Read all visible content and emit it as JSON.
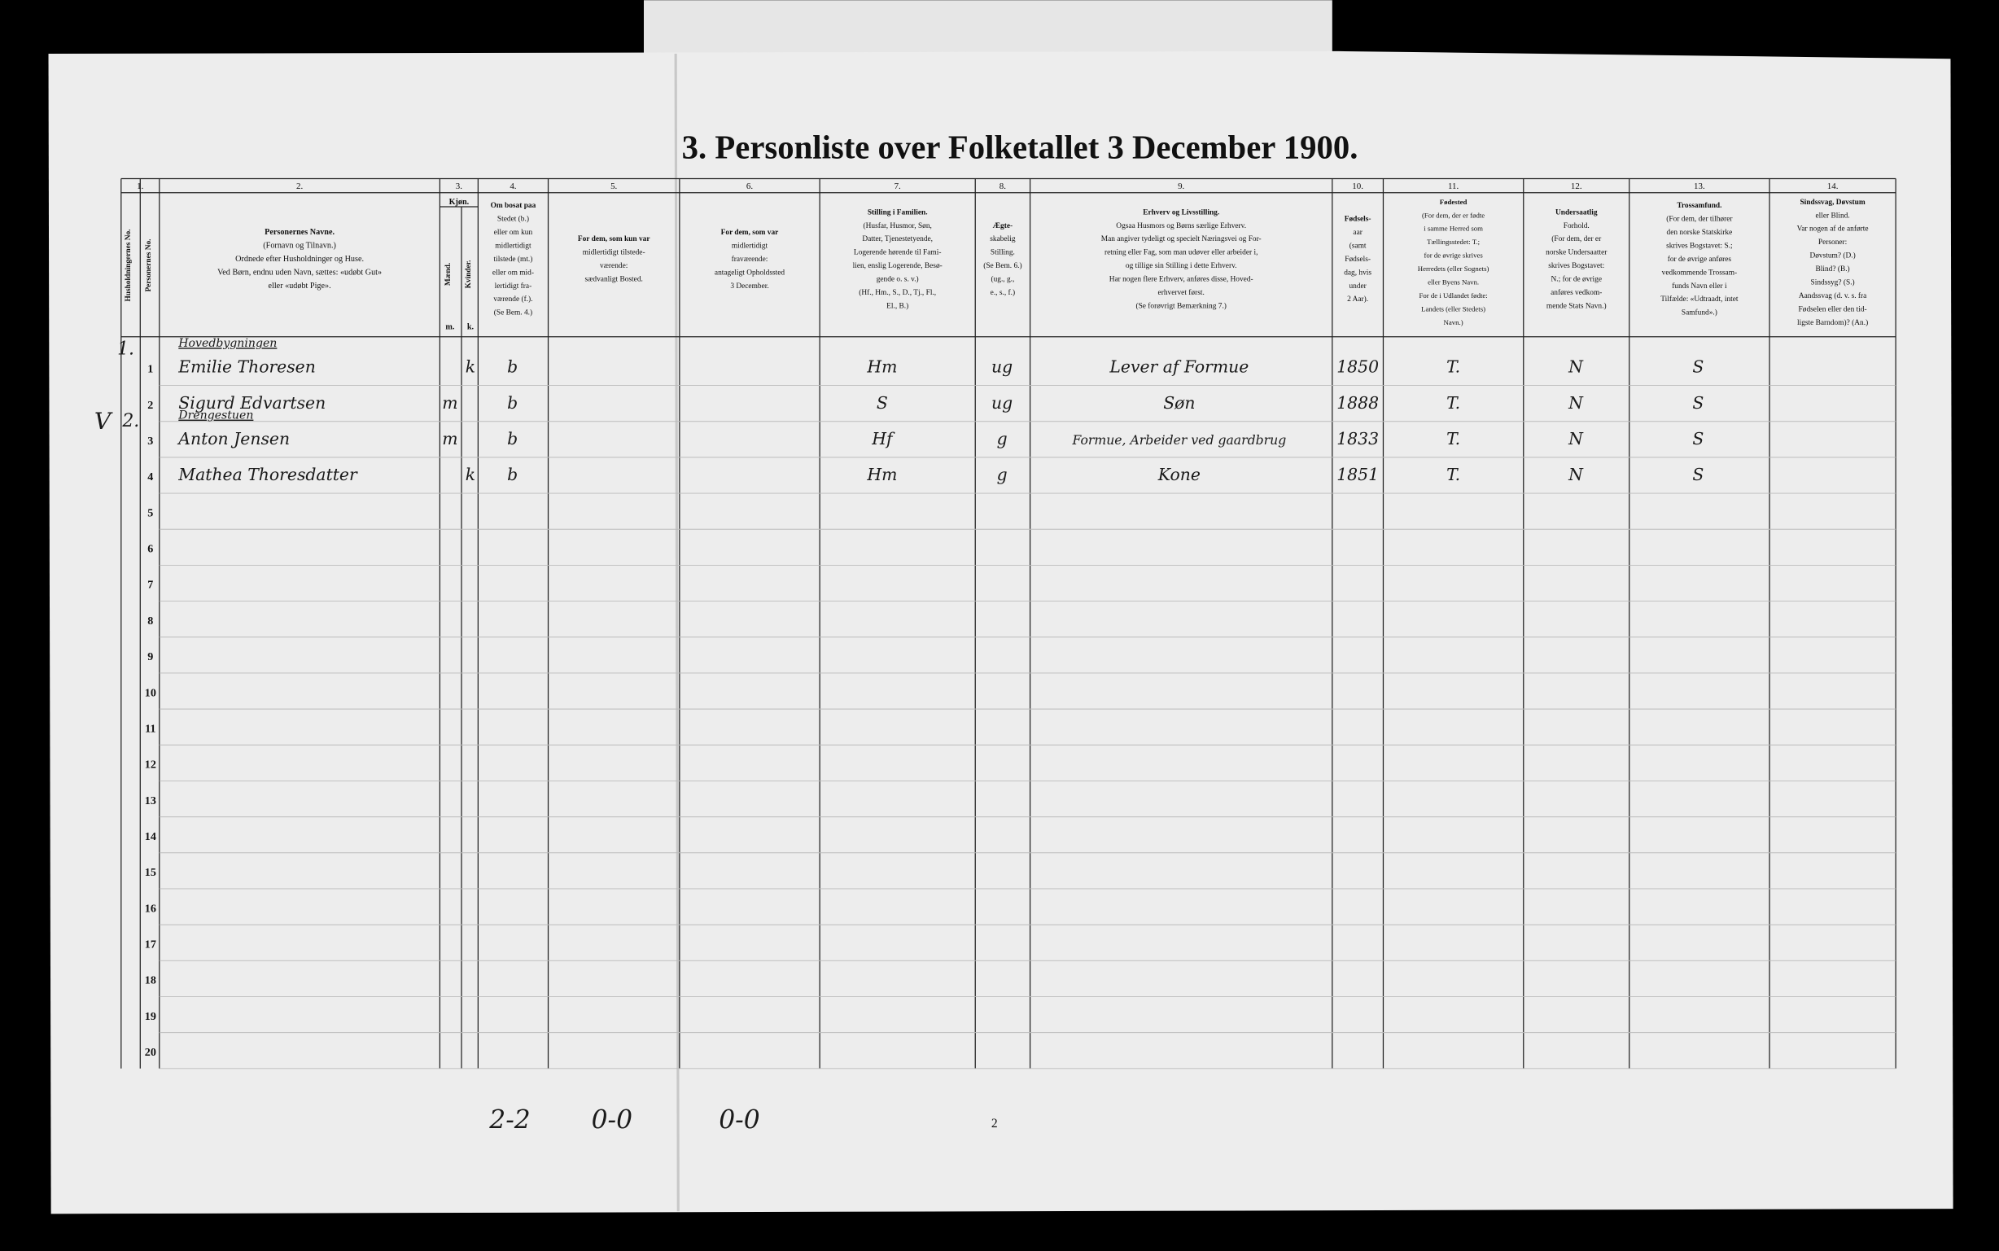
{
  "title": "3. Personliste over Folketallet 3 December 1900.",
  "columns": [
    {
      "number": "1.",
      "lines": [
        "Husholdningernes No.",
        "Personernes No."
      ]
    },
    {
      "number": "2.",
      "lines": [
        "Personernes Navne.",
        "(Fornavn og Tilnavn.)",
        "Ordnede efter Husholdninger og Huse.",
        "Ved Børn, endnu uden Navn, sættes: «udøbt Gut»",
        "eller «udøbt Pige»."
      ]
    },
    {
      "number": "3.",
      "lines": [
        "Kjøn.",
        "Mænd.",
        "Kvinder.",
        "m.",
        "k."
      ]
    },
    {
      "number": "4.",
      "lines": [
        "Om bosat paa",
        "Stedet (b.)",
        "eller om kun",
        "midlertidigt",
        "tilstede (mt.)",
        "eller om mid-",
        "lertidigt fra-",
        "værende (f.).",
        "(Se Bem. 4.)"
      ]
    },
    {
      "number": "5.",
      "lines": [
        "For dem, som kun var",
        "midlertidigt tilstede-",
        "værende:",
        "sædvanligt Bosted."
      ]
    },
    {
      "number": "6.",
      "lines": [
        "For dem, som var",
        "midlertidigt",
        "fraværende:",
        "antageligt Opholdssted",
        "3 December."
      ]
    },
    {
      "number": "7.",
      "lines": [
        "Stilling i Familien.",
        "(Husfar, Husmor, Søn,",
        "Datter, Tjenestetyende,",
        "Logerende hørende til Fami-",
        "lien, enslig Logerende, Besø-",
        "gende o. s. v.)",
        "(Hf., Hm., S., D., Tj., Fl.,",
        "El., B.)"
      ]
    },
    {
      "number": "8.",
      "lines": [
        "Ægte-",
        "skabelig",
        "Stilling.",
        "(Se Bem. 6.)",
        "(ug., g.,",
        "e., s., f.)"
      ]
    },
    {
      "number": "9.",
      "lines": [
        "Erhverv og Livsstilling.",
        "Ogsaa Husmors og Børns særlige Erhverv.",
        "Man angiver tydeligt og specielt Næringsvei og For-",
        "retning eller Fag, som man udøver eller arbeider i,",
        "og tillige sin Stilling i dette Erhverv.",
        "Har nogen flere Erhverv, anføres disse, Hoved-",
        "erhvervet først.",
        "(Se forøvrigt Bemærkning 7.)"
      ]
    },
    {
      "number": "10.",
      "lines": [
        "Fødsels-",
        "aar",
        "(samt",
        "Fødsels-",
        "dag, hvis",
        "under",
        "2 Aar)."
      ]
    },
    {
      "number": "11.",
      "lines": [
        "Fødested",
        "(For dem, der er fødte",
        "i samme Herred som",
        "Tællingsstedet: T.;",
        "for de øvrige skrives",
        "Herredets (eller Sognets)",
        "eller Byens Navn.",
        "For de i Udlandet fødte:",
        "Landets (eller Stedets)",
        "Navn.)"
      ]
    },
    {
      "number": "12.",
      "lines": [
        "Undersaatlig",
        "Forhold.",
        "(For dem, der er",
        "norske Undersaatter",
        "skrives Bogstavet:",
        "N.; for de øvrige",
        "anføres vedkom-",
        "mende Stats Navn.)"
      ]
    },
    {
      "number": "13.",
      "lines": [
        "Trossamfund.",
        "(For dem, der tilhører",
        "den norske Statskirke",
        "skrives Bogstavet: S.;",
        "for de øvrige anføres",
        "vedkommende Trossam-",
        "funds Navn eller i",
        "Tilfælde: «Udtraadt, intet",
        "Samfund».)"
      ]
    },
    {
      "number": "14.",
      "lines": [
        "Sindssvag, Døvstum",
        "eller Blind.",
        "Var nogen af de anførte",
        "Personer:",
        "Døvstum? (D.)",
        "Blind? (B.)",
        "Sindssyg? (S.)",
        "Aandssvag (d. v. s. fra",
        "Fødselen eller den tid-",
        "ligste Barndom)? (An.)"
      ]
    }
  ],
  "households": [
    {
      "number": "1.",
      "building": "Hovedbygningen",
      "row": 0
    },
    {
      "number": "2.",
      "building": "Drengestuen",
      "row": 2,
      "mark": "V"
    }
  ],
  "rows": [
    {
      "no": "1",
      "name": "Emilie Thoresen",
      "sex_k": "k",
      "residence": "b",
      "position": "Hm",
      "marital": "ug",
      "occupation": "Lever af Formue",
      "birth_year": "1850",
      "birthplace": "T.",
      "citizenship": "N",
      "religion": "S"
    },
    {
      "no": "2",
      "name": "Sigurd Edvartsen",
      "sex_m": "m",
      "residence": "b",
      "position": "S",
      "marital": "ug",
      "occupation": "Søn",
      "birth_year": "1888",
      "birthplace": "T.",
      "citizenship": "N",
      "religion": "S"
    },
    {
      "no": "3",
      "name": "Anton Jensen",
      "sex_m": "m",
      "residence": "b",
      "position": "Hf",
      "marital": "g",
      "occupation": "Formue, Arbeider ved gaardbrug",
      "birth_year": "1833",
      "birthplace": "T.",
      "citizenship": "N",
      "religion": "S"
    },
    {
      "no": "4",
      "name": "Mathea Thoresdatter",
      "sex_k": "k",
      "residence": "b",
      "position": "Hm",
      "marital": "g",
      "occupation": "Kone",
      "birth_year": "1851",
      "birthplace": "T.",
      "citizenship": "N",
      "religion": "S"
    },
    {
      "no": "5"
    },
    {
      "no": "6"
    },
    {
      "no": "7"
    },
    {
      "no": "8"
    },
    {
      "no": "9"
    },
    {
      "no": "10"
    },
    {
      "no": "11"
    },
    {
      "no": "12"
    },
    {
      "no": "13"
    },
    {
      "no": "14"
    },
    {
      "no": "15"
    },
    {
      "no": "16"
    },
    {
      "no": "17"
    },
    {
      "no": "18"
    },
    {
      "no": "19"
    },
    {
      "no": "20"
    }
  ],
  "tally": [
    "2-2",
    "0-0",
    "0-0"
  ],
  "page_number": "2"
}
